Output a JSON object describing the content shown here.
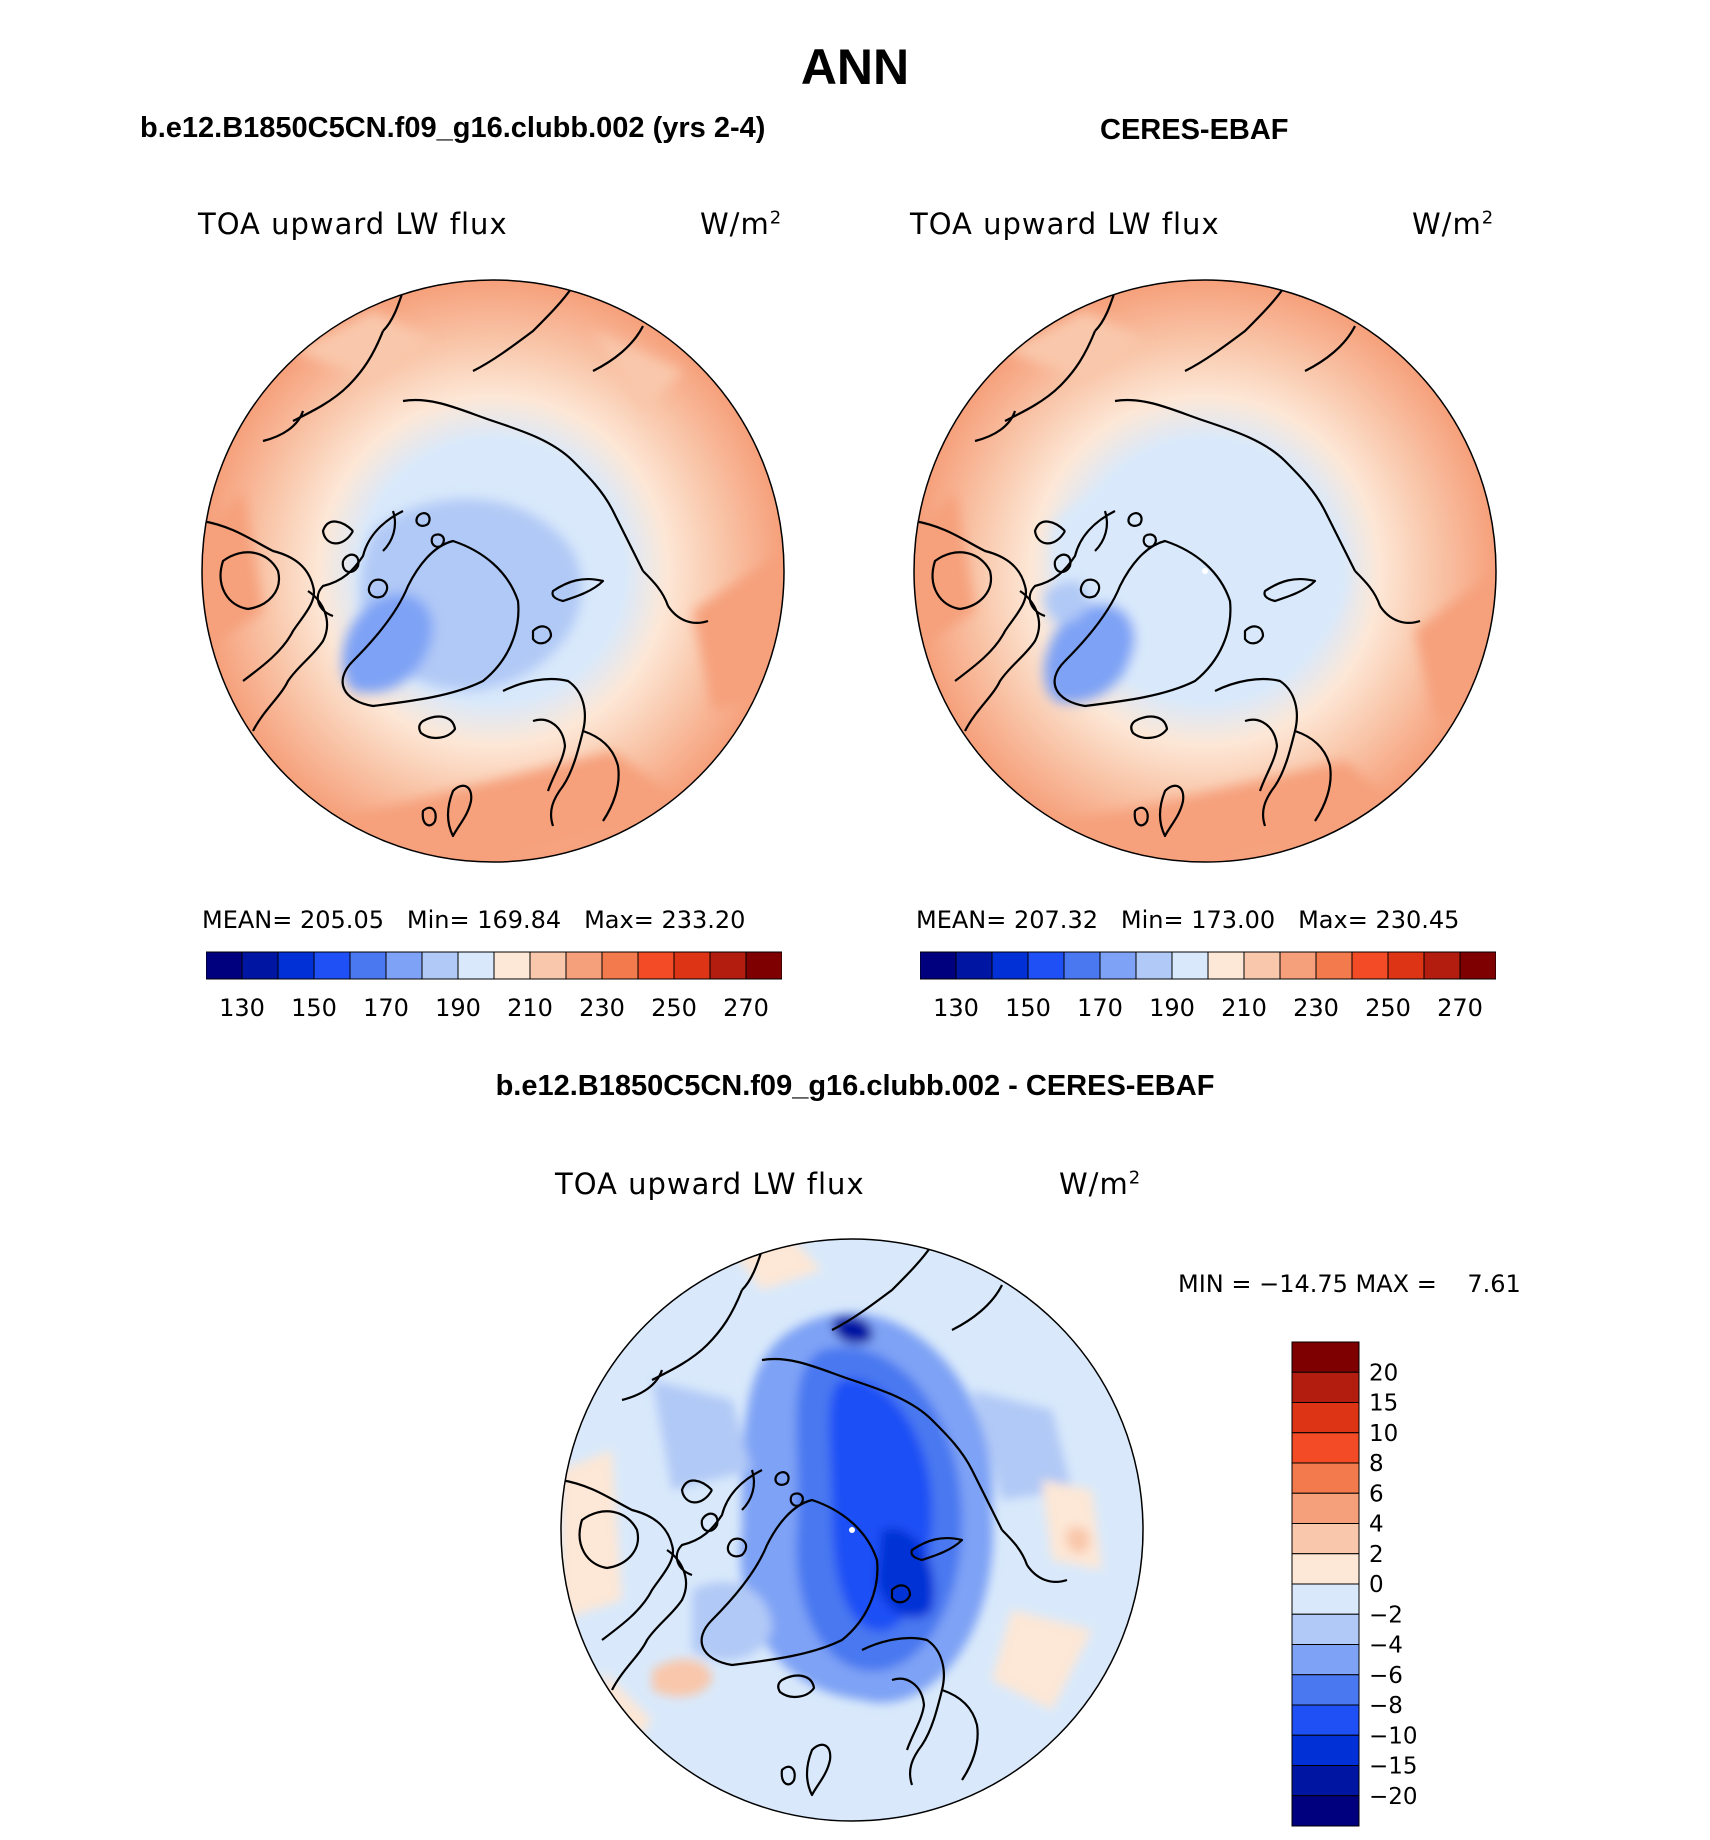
{
  "season": "ANN",
  "colors": {
    "abs_scale": [
      "#00007f",
      "#0016a3",
      "#0030d6",
      "#1e50f5",
      "#4a78f0",
      "#7ea2f5",
      "#b1c9f6",
      "#d9e9fb",
      "#fde7d6",
      "#f9c7ab",
      "#f6a07b",
      "#f37a4d",
      "#f24b25",
      "#dc3414",
      "#b31d0f",
      "#7f0000"
    ],
    "diff_scale": [
      "#00007f",
      "#0016a3",
      "#0030d6",
      "#1e50f5",
      "#4a78f0",
      "#7ea2f5",
      "#b1c9f6",
      "#d9e9fb",
      "#fde7d6",
      "#f9c7ab",
      "#f6a07b",
      "#f37a4d",
      "#f24b25",
      "#dc3414",
      "#b31d0f",
      "#7f0000"
    ],
    "coastline": "#000000"
  },
  "panels": {
    "model": {
      "case_title": "b.e12.B1850C5CN.f09_g16.clubb.002 (yrs 2-4)",
      "field": "TOA upward LW flux",
      "units": "W/m",
      "units_sup": "2",
      "stats": {
        "mean_label": "MEAN=",
        "mean": "205.05",
        "min_label": "Min=",
        "min": "169.84",
        "max_label": "Max=",
        "max": "233.20"
      },
      "colorbar_labels": [
        "130",
        "150",
        "170",
        "190",
        "210",
        "230",
        "250",
        "270"
      ]
    },
    "obs": {
      "case_title": "CERES-EBAF",
      "field": "TOA upward LW flux",
      "units": "W/m",
      "units_sup": "2",
      "stats": {
        "mean_label": "MEAN=",
        "mean": "207.32",
        "min_label": "Min=",
        "min": "173.00",
        "max_label": "Max=",
        "max": "230.45"
      },
      "colorbar_labels": [
        "130",
        "150",
        "170",
        "190",
        "210",
        "230",
        "250",
        "270"
      ]
    },
    "diff": {
      "case_title": "b.e12.B1850C5CN.f09_g16.clubb.002 - CERES-EBAF",
      "field": "TOA upward LW flux",
      "units": "W/m",
      "units_sup": "2",
      "minmax_text": "MIN = −14.75 MAX =    7.61",
      "colorbar_labels": [
        "20",
        "15",
        "10",
        "8",
        "6",
        "4",
        "2",
        "0",
        "−2",
        "−4",
        "−6",
        "−8",
        "−10",
        "−15",
        "−20"
      ]
    }
  },
  "chart_data": [
    {
      "type": "heatmap",
      "title": "TOA upward LW flux",
      "subtitle": "b.e12.B1850C5CN.f09_g16.clubb.002 (yrs 2-4)",
      "projection": "north polar stereographic",
      "units": "W/m2",
      "mean": 205.05,
      "min": 169.84,
      "max": 233.2,
      "contour_levels": [
        130,
        140,
        150,
        160,
        170,
        180,
        190,
        200,
        210,
        220,
        230,
        240,
        250,
        260,
        270
      ]
    },
    {
      "type": "heatmap",
      "title": "TOA upward LW flux",
      "subtitle": "CERES-EBAF",
      "projection": "north polar stereographic",
      "units": "W/m2",
      "mean": 207.32,
      "min": 173.0,
      "max": 230.45,
      "contour_levels": [
        130,
        140,
        150,
        160,
        170,
        180,
        190,
        200,
        210,
        220,
        230,
        240,
        250,
        260,
        270
      ]
    },
    {
      "type": "heatmap",
      "title": "TOA upward LW flux",
      "subtitle": "b.e12.B1850C5CN.f09_g16.clubb.002 - CERES-EBAF",
      "projection": "north polar stereographic",
      "units": "W/m2",
      "min": -14.75,
      "max": 7.61,
      "contour_levels": [
        -20,
        -15,
        -10,
        -8,
        -6,
        -4,
        -2,
        0,
        2,
        4,
        6,
        8,
        10,
        15,
        20
      ]
    }
  ]
}
